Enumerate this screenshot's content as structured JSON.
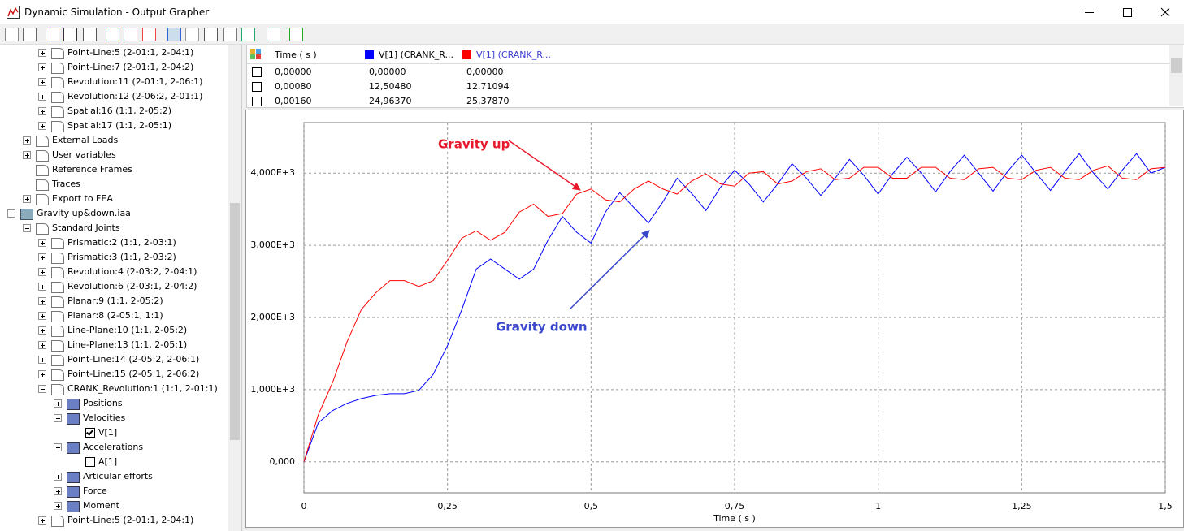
{
  "window": {
    "title": "Dynamic Simulation - Output Grapher"
  },
  "tree": {
    "items": [
      {
        "label": "Point-Line:5 (2-01:1, 2-04:1)",
        "level": 3,
        "expander": "plus"
      },
      {
        "label": "Point-Line:7 (2-01:1, 2-04:2)",
        "level": 3,
        "expander": "plus"
      },
      {
        "label": "Revolution:11 (2-01:1, 2-06:1)",
        "level": 3,
        "expander": "plus"
      },
      {
        "label": "Revolution:12 (2-06:2, 2-01:1)",
        "level": 3,
        "expander": "plus"
      },
      {
        "label": "Spatial:16 (1:1, 2-05:2)",
        "level": 3,
        "expander": "plus"
      },
      {
        "label": "Spatial:17 (1:1, 2-05:1)",
        "level": 3,
        "expander": "plus"
      },
      {
        "label": "External Loads",
        "level": 2,
        "expander": "plus"
      },
      {
        "label": "User variables",
        "level": 2,
        "expander": "plus"
      },
      {
        "label": "Reference Frames",
        "level": 2
      },
      {
        "label": "Traces",
        "level": 2
      },
      {
        "label": "Export to FEA",
        "level": 2,
        "expander": "plus"
      },
      {
        "label": "Gravity up&down.iaa",
        "level": 1,
        "expander": "minus"
      },
      {
        "label": "Standard Joints",
        "level": 2,
        "expander": "minus"
      },
      {
        "label": "Prismatic:2 (1:1, 2-03:1)",
        "level": 3,
        "expander": "plus"
      },
      {
        "label": "Prismatic:3 (1:1, 2-03:2)",
        "level": 3,
        "expander": "plus"
      },
      {
        "label": "Revolution:4 (2-03:2, 2-04:1)",
        "level": 3,
        "expander": "plus"
      },
      {
        "label": "Revolution:6 (2-03:1, 2-04:2)",
        "level": 3,
        "expander": "plus"
      },
      {
        "label": "Planar:9 (1:1, 2-05:2)",
        "level": 3,
        "expander": "plus"
      },
      {
        "label": "Planar:8 (2-05:1, 1:1)",
        "level": 3,
        "expander": "plus"
      },
      {
        "label": "Line-Plane:10 (1:1, 2-05:2)",
        "level": 3,
        "expander": "plus"
      },
      {
        "label": "Line-Plane:13 (1:1, 2-05:1)",
        "level": 3,
        "expander": "plus"
      },
      {
        "label": "Point-Line:14 (2-05:2, 2-06:1)",
        "level": 3,
        "expander": "plus"
      },
      {
        "label": "Point-Line:15 (2-05:1, 2-06:2)",
        "level": 3,
        "expander": "plus"
      },
      {
        "label": "CRANK_Revolution:1 (1:1, 2-01:1)",
        "level": 3,
        "expander": "minus"
      },
      {
        "label": "Positions",
        "level": 4,
        "expander": "plus"
      },
      {
        "label": "Velocities",
        "level": 4,
        "expander": "minus"
      },
      {
        "label": "V[1]",
        "level": 5,
        "checked": true
      },
      {
        "label": "Accelerations",
        "level": 4,
        "expander": "minus"
      },
      {
        "label": "A[1]",
        "level": 5,
        "checked": false
      },
      {
        "label": "Articular efforts",
        "level": 4,
        "expander": "plus"
      },
      {
        "label": "Force",
        "level": 4,
        "expander": "plus"
      },
      {
        "label": "Moment",
        "level": 4,
        "expander": "plus"
      },
      {
        "label": "Point-Line:5 (2-01:1, 2-04:1)",
        "level": 3,
        "expander": "plus"
      }
    ]
  },
  "table": {
    "columns": [
      "Time ( s )",
      "V[1] (CRANK_R...",
      "V[1] (CRANK_R..."
    ],
    "rows": [
      [
        "0,00000",
        "0,00000",
        "0,00000"
      ],
      [
        "0,00080",
        "12,50480",
        "12,71094"
      ],
      [
        "0,00160",
        "24,96370",
        "25,37870"
      ]
    ]
  },
  "chart_data": {
    "type": "line",
    "x_label": "Time ( s )",
    "x": [
      0,
      0.025,
      0.05,
      0.075,
      0.1,
      0.125,
      0.15,
      0.175,
      0.2,
      0.225,
      0.25,
      0.275,
      0.3,
      0.325,
      0.35,
      0.375,
      0.4,
      0.425,
      0.45,
      0.475,
      0.5,
      0.525,
      0.55,
      0.575,
      0.6,
      0.625,
      0.65,
      0.675,
      0.7,
      0.725,
      0.75,
      0.775,
      0.8,
      0.825,
      0.85,
      0.875,
      0.9,
      0.925,
      0.95,
      0.975,
      1,
      1.025,
      1.05,
      1.075,
      1.1,
      1.125,
      1.15,
      1.175,
      1.2,
      1.225,
      1.25,
      1.275,
      1.3,
      1.325,
      1.35,
      1.375,
      1.4,
      1.425,
      1.45,
      1.475,
      1.5
    ],
    "series": [
      {
        "color": "#0000ff",
        "values": [
          0,
          540,
          710,
          810,
          876,
          920,
          944,
          944,
          990,
          1210,
          1610,
          2110,
          2670,
          2810,
          2670,
          2530,
          2670,
          3070,
          3400,
          3180,
          3030,
          3460,
          3730,
          3520,
          3310,
          3600,
          3930,
          3720,
          3480,
          3800,
          4040,
          3850,
          3600,
          3850,
          4130,
          3930,
          3690,
          3930,
          4190,
          3970,
          3710,
          3990,
          4220,
          4000,
          3740,
          4020,
          4250,
          4000,
          3750,
          4020,
          4250,
          4000,
          3760,
          4020,
          4270,
          4000,
          3780,
          4040,
          4270,
          4000,
          4080
        ]
      },
      {
        "color": "#ff0000",
        "values": [
          0,
          650,
          1100,
          1660,
          2110,
          2340,
          2510,
          2510,
          2430,
          2510,
          2790,
          3100,
          3200,
          3070,
          3180,
          3460,
          3570,
          3400,
          3440,
          3710,
          3780,
          3630,
          3600,
          3780,
          3890,
          3780,
          3710,
          3890,
          3990,
          3850,
          3820,
          4000,
          4020,
          3850,
          3890,
          4020,
          4060,
          3910,
          3930,
          4080,
          4080,
          3930,
          3930,
          4080,
          4080,
          3930,
          3910,
          4060,
          4080,
          3930,
          3910,
          4040,
          4080,
          3930,
          3910,
          4040,
          4100,
          3930,
          3910,
          4060,
          4080
        ]
      }
    ],
    "xlim": [
      0,
      1.5
    ],
    "xticks": [
      0,
      {
        "value": 0.25,
        "label": "0,25"
      },
      {
        "value": 0.5,
        "label": "0,5"
      },
      {
        "value": 0.75,
        "label": "0,75"
      },
      1,
      {
        "value": 1.25,
        "label": "1,25"
      },
      {
        "value": 1.5,
        "label": "1,5"
      }
    ],
    "ylim": [
      -430,
      4700
    ],
    "yticks": [
      {
        "value": 0,
        "label": "0,000"
      },
      {
        "value": 1000,
        "label": "1,000E+3"
      },
      {
        "value": 2000,
        "label": "2,000E+3"
      },
      {
        "value": 3000,
        "label": "3,000E+3"
      },
      {
        "value": 4000,
        "label": "4,000E+3"
      }
    ],
    "grid": true,
    "annotations": [
      {
        "text": "Gravity up",
        "color": "#e8192c"
      },
      {
        "text": "Gravity down",
        "color": "#3b48cc"
      }
    ]
  }
}
